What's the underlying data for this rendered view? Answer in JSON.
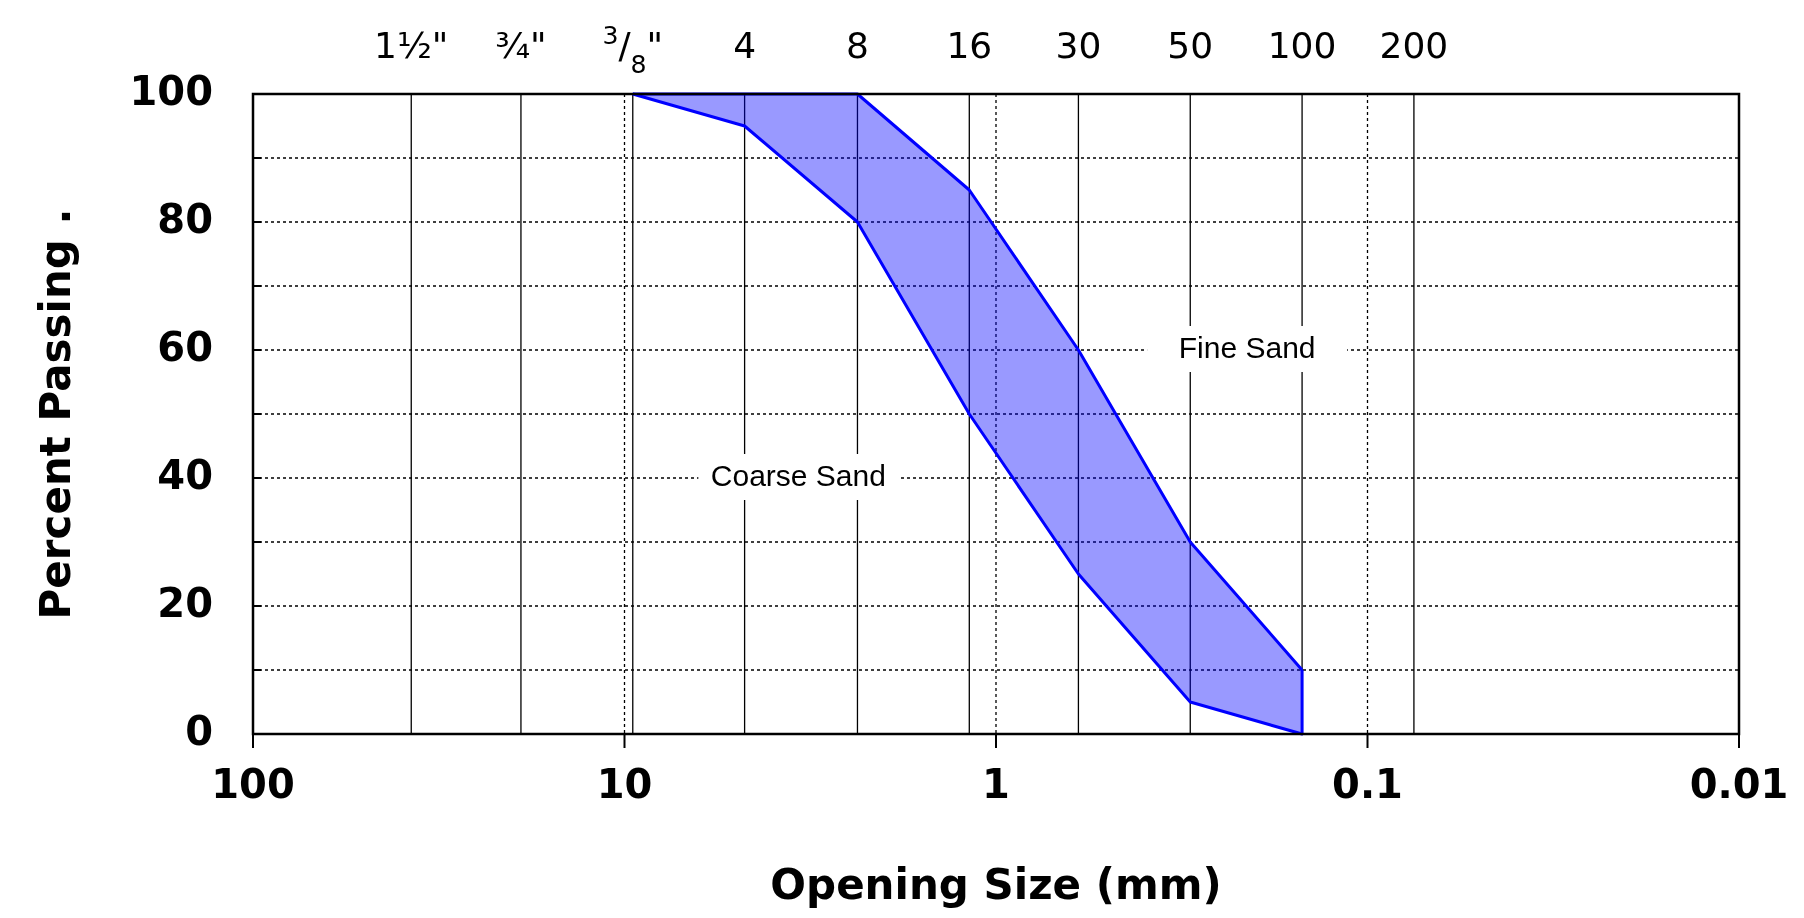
{
  "chart_data": {
    "type": "line",
    "xlabel": "Opening Size (mm)",
    "ylabel": "Percent Passing .",
    "log": "x",
    "xlim": [
      100,
      0.01
    ],
    "xticks": [
      100,
      10,
      1,
      0.1,
      0.01
    ],
    "ylim": [
      0,
      100
    ],
    "yticks": [
      0,
      {
        "value": 10,
        "label": null
      },
      20,
      {
        "value": 30,
        "label": null
      },
      40,
      {
        "value": 50,
        "label": null
      },
      60,
      {
        "value": 70,
        "label": null
      },
      80,
      {
        "value": 90,
        "label": null
      },
      100
    ],
    "grid": true,
    "ref_lines": [
      {
        "axis": "x",
        "value": 37.5
      },
      {
        "axis": "x",
        "value": 19
      },
      {
        "axis": "x",
        "value": 9.5
      },
      {
        "axis": "x",
        "value": 4.75
      },
      {
        "axis": "x",
        "value": 2.36
      },
      {
        "axis": "x",
        "value": 1.18
      },
      {
        "axis": "x",
        "value": 0.6
      },
      {
        "axis": "x",
        "value": 0.3
      },
      {
        "axis": "x",
        "value": 0.15
      },
      {
        "axis": "x",
        "value": 0.075
      }
    ],
    "series": [
      {
        "type": "line",
        "color": "#0000ff",
        "x": [
          9.5,
          4.75,
          2.36,
          1.18,
          0.6,
          0.3,
          0.15
        ],
        "values": [
          100,
          100,
          100,
          85,
          60,
          30,
          10
        ]
      },
      {
        "type": "line",
        "color": "#0000ff",
        "x": [
          9.5,
          4.75,
          2.36,
          1.18,
          0.6,
          0.3,
          0.15,
          0.15
        ],
        "values": [
          100,
          95,
          80,
          50,
          25,
          5,
          0,
          10
        ]
      }
    ],
    "annotations": [
      "Coarse Sand",
      "Fine Sand",
      "1½\"",
      "¾\"",
      "$^{3}$/$_{8}$\"",
      "4",
      "8",
      "16",
      "30",
      "50",
      "100",
      "200"
    ]
  }
}
